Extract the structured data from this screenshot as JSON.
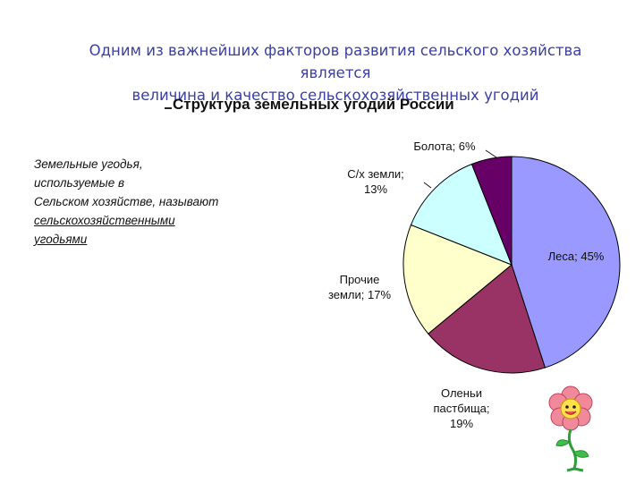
{
  "header": {
    "line1": "Одним из важнейших факторов развития сельского хозяйства является",
    "line2": "величина и качество сельскохозяйственных угодий"
  },
  "definition": {
    "line1": "Земельные угодья,",
    "line2": "используемые в",
    "line3": "Сельском хозяйстве, называют",
    "line4": "сельскохозяйственными",
    "line5": "угодьями"
  },
  "chart_data": {
    "type": "pie",
    "title": "Структура земельных угодий России",
    "slices": [
      {
        "name": "Леса",
        "value": 45,
        "color": "#9999ff",
        "label_lines": [
          "Леса; 45%"
        ]
      },
      {
        "name": "Оленьи пастбища",
        "value": 19,
        "color": "#993366",
        "label_lines": [
          "Оленьи",
          "пастбища;",
          "19%"
        ]
      },
      {
        "name": "Прочие земли",
        "value": 17,
        "color": "#ffffcc",
        "label_lines": [
          "Прочие",
          "земли; 17%"
        ]
      },
      {
        "name": "С/х земли",
        "value": 13,
        "color": "#ccffff",
        "label_lines": [
          "С/х земли;",
          "13%"
        ]
      },
      {
        "name": "Болота",
        "value": 6,
        "color": "#660066",
        "label_lines": [
          "Болота; 6%"
        ]
      }
    ]
  },
  "decoration": {
    "flower": "flower-icon"
  }
}
